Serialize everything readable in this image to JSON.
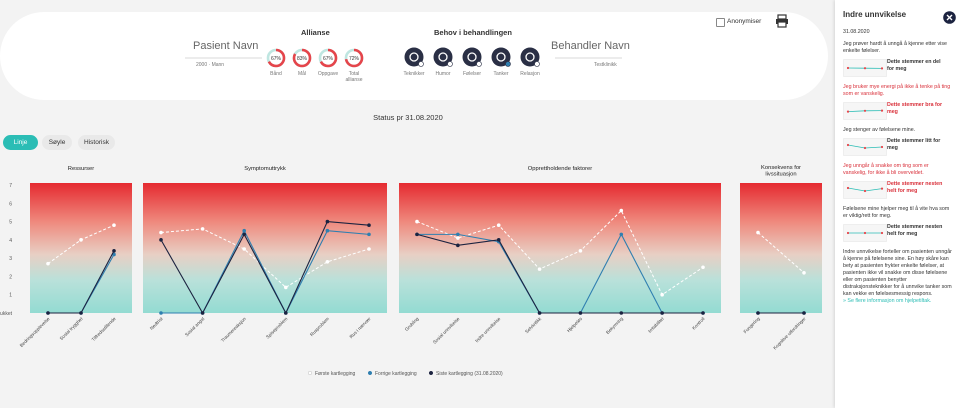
{
  "header": {
    "patient_name": "Pasient Navn",
    "patient_info": "2000 · Mann",
    "alliance_title": "Allianse",
    "alliance": [
      {
        "label": "Bånd",
        "value": 67,
        "value_label": "67%"
      },
      {
        "label": "Mål",
        "value": 83,
        "value_label": "83%"
      },
      {
        "label": "Oppgave",
        "value": 67,
        "value_label": "67%"
      },
      {
        "label": "Total allianse",
        "value": 72,
        "value_label": "72%"
      }
    ],
    "needs_title": "Behov i behandlingen",
    "needs": [
      "Teknikker",
      "Humor",
      "Følelser",
      "Tanker",
      "Relasjon"
    ],
    "therapist_name": "Behandler Navn",
    "clinic": "Testklinikk",
    "anonymize": "Anonymiser"
  },
  "status": "Status pr 31.08.2020",
  "tabs": [
    "Linje",
    "Søyle",
    "Historisk"
  ],
  "chart_data": {
    "type": "line",
    "ylim": [
      0,
      7
    ],
    "yticks": [
      {
        "value": 0,
        "label": "ukket"
      },
      1,
      2,
      3,
      4,
      5,
      6,
      7
    ],
    "series": [
      {
        "name": "Første kartlegging",
        "color": "#ffffff"
      },
      {
        "name": "Forrige kartlegging",
        "color": "#2f7fb0"
      },
      {
        "name": "Siste kartlegging (31.08.2020)",
        "color": "#1c2340"
      }
    ],
    "panels": [
      {
        "title": "Ressurser",
        "categories": [
          "Bedringsopplevelse",
          "Sosial trygghet",
          "Tilfredsstillende"
        ],
        "values": [
          [
            2.7,
            4.0,
            4.8
          ],
          [
            0,
            0,
            3.2
          ],
          [
            0,
            0,
            3.4
          ]
        ]
      },
      {
        "title": "Symptomuttrykk",
        "categories": [
          "Nedtrist",
          "Sosial angst",
          "Traumereaksjon",
          "Spiseproblem",
          "Rusproblem",
          "Rus i nærvær"
        ],
        "values": [
          [
            4.4,
            4.6,
            3.5,
            1.4,
            2.8,
            3.5
          ],
          [
            0,
            0,
            4.5,
            0,
            4.5,
            4.3
          ],
          [
            4.0,
            0,
            4.3,
            0,
            5.0,
            4.8
          ]
        ]
      },
      {
        "title": "Opprettholdende faktorer",
        "categories": [
          "Grubling",
          "Sosial unnvikelse",
          "Indre unnvikelse",
          "Selvkritikk",
          "Hjelpeløs",
          "Bekymring",
          "Irritabilitet",
          "Kontroll"
        ],
        "values": [
          [
            5.0,
            4.1,
            4.8,
            2.4,
            3.4,
            5.6,
            1.0,
            2.5
          ],
          [
            4.3,
            4.3,
            3.9,
            0,
            0,
            4.3,
            0,
            0
          ],
          [
            4.3,
            3.7,
            4.0,
            0,
            0,
            0,
            0,
            0
          ]
        ]
      },
      {
        "title": "Konsekvens for livssituasjon",
        "categories": [
          "Fungering",
          "Kognitive utfordringer"
        ],
        "values": [
          [
            4.4,
            2.2
          ],
          [
            0,
            0
          ],
          [
            0,
            0
          ]
        ]
      }
    ]
  },
  "side_panel": {
    "title": "Indre unnvikelse",
    "date": "31.08.2020",
    "trend_ylim": [
      0,
      7
    ],
    "items": [
      {
        "statement": "Jeg prøver hardt å unngå å kjenne etter vise enkelte følelser.",
        "trend": [
          3.5,
          3.4,
          3.3
        ],
        "assessment": "Dette stemmer en del for meg",
        "highlight": false
      },
      {
        "statement": "Jeg bruker mye energi på ikke å tenke på ting som er vanskelig.",
        "trend": [
          3.2,
          3.6,
          3.7
        ],
        "assessment": "Dette stemmer bra for meg",
        "highlight": true
      },
      {
        "statement": "Jeg stenger av følelsene mine.",
        "trend": [
          4.5,
          3.0,
          3.5
        ],
        "assessment": "Dette stemmer litt for meg",
        "highlight": false
      },
      {
        "statement": "Jeg unngår å snakke om ting som er vanskelig, for ikke å bli overveldet.",
        "trend": [
          4.5,
          3.0,
          4.2
        ],
        "assessment": "Dette stemmer nesten helt for meg",
        "highlight": true
      },
      {
        "statement": "Følelsene mine hjelper meg til å vite hva som er viktig/rett for meg.",
        "trend": [
          3.5,
          3.5,
          3.5
        ],
        "assessment": "Dette stemmer nesten helt for meg",
        "highlight": false
      }
    ],
    "description": "Indre unnvikelse forteller om pasienten unngår å kjenne på følelsene sine. En høy skåre kan bety at pasienten frykter enkelte følelser, at pasienten ikke vil snakke om disse følelsene eller om pasienten benytter distraksjonsteknikker for å unnvike tanker som kan vekke en følelsesmessig respons.",
    "link": "» Se flere informasjon om hjelpetiltak."
  }
}
